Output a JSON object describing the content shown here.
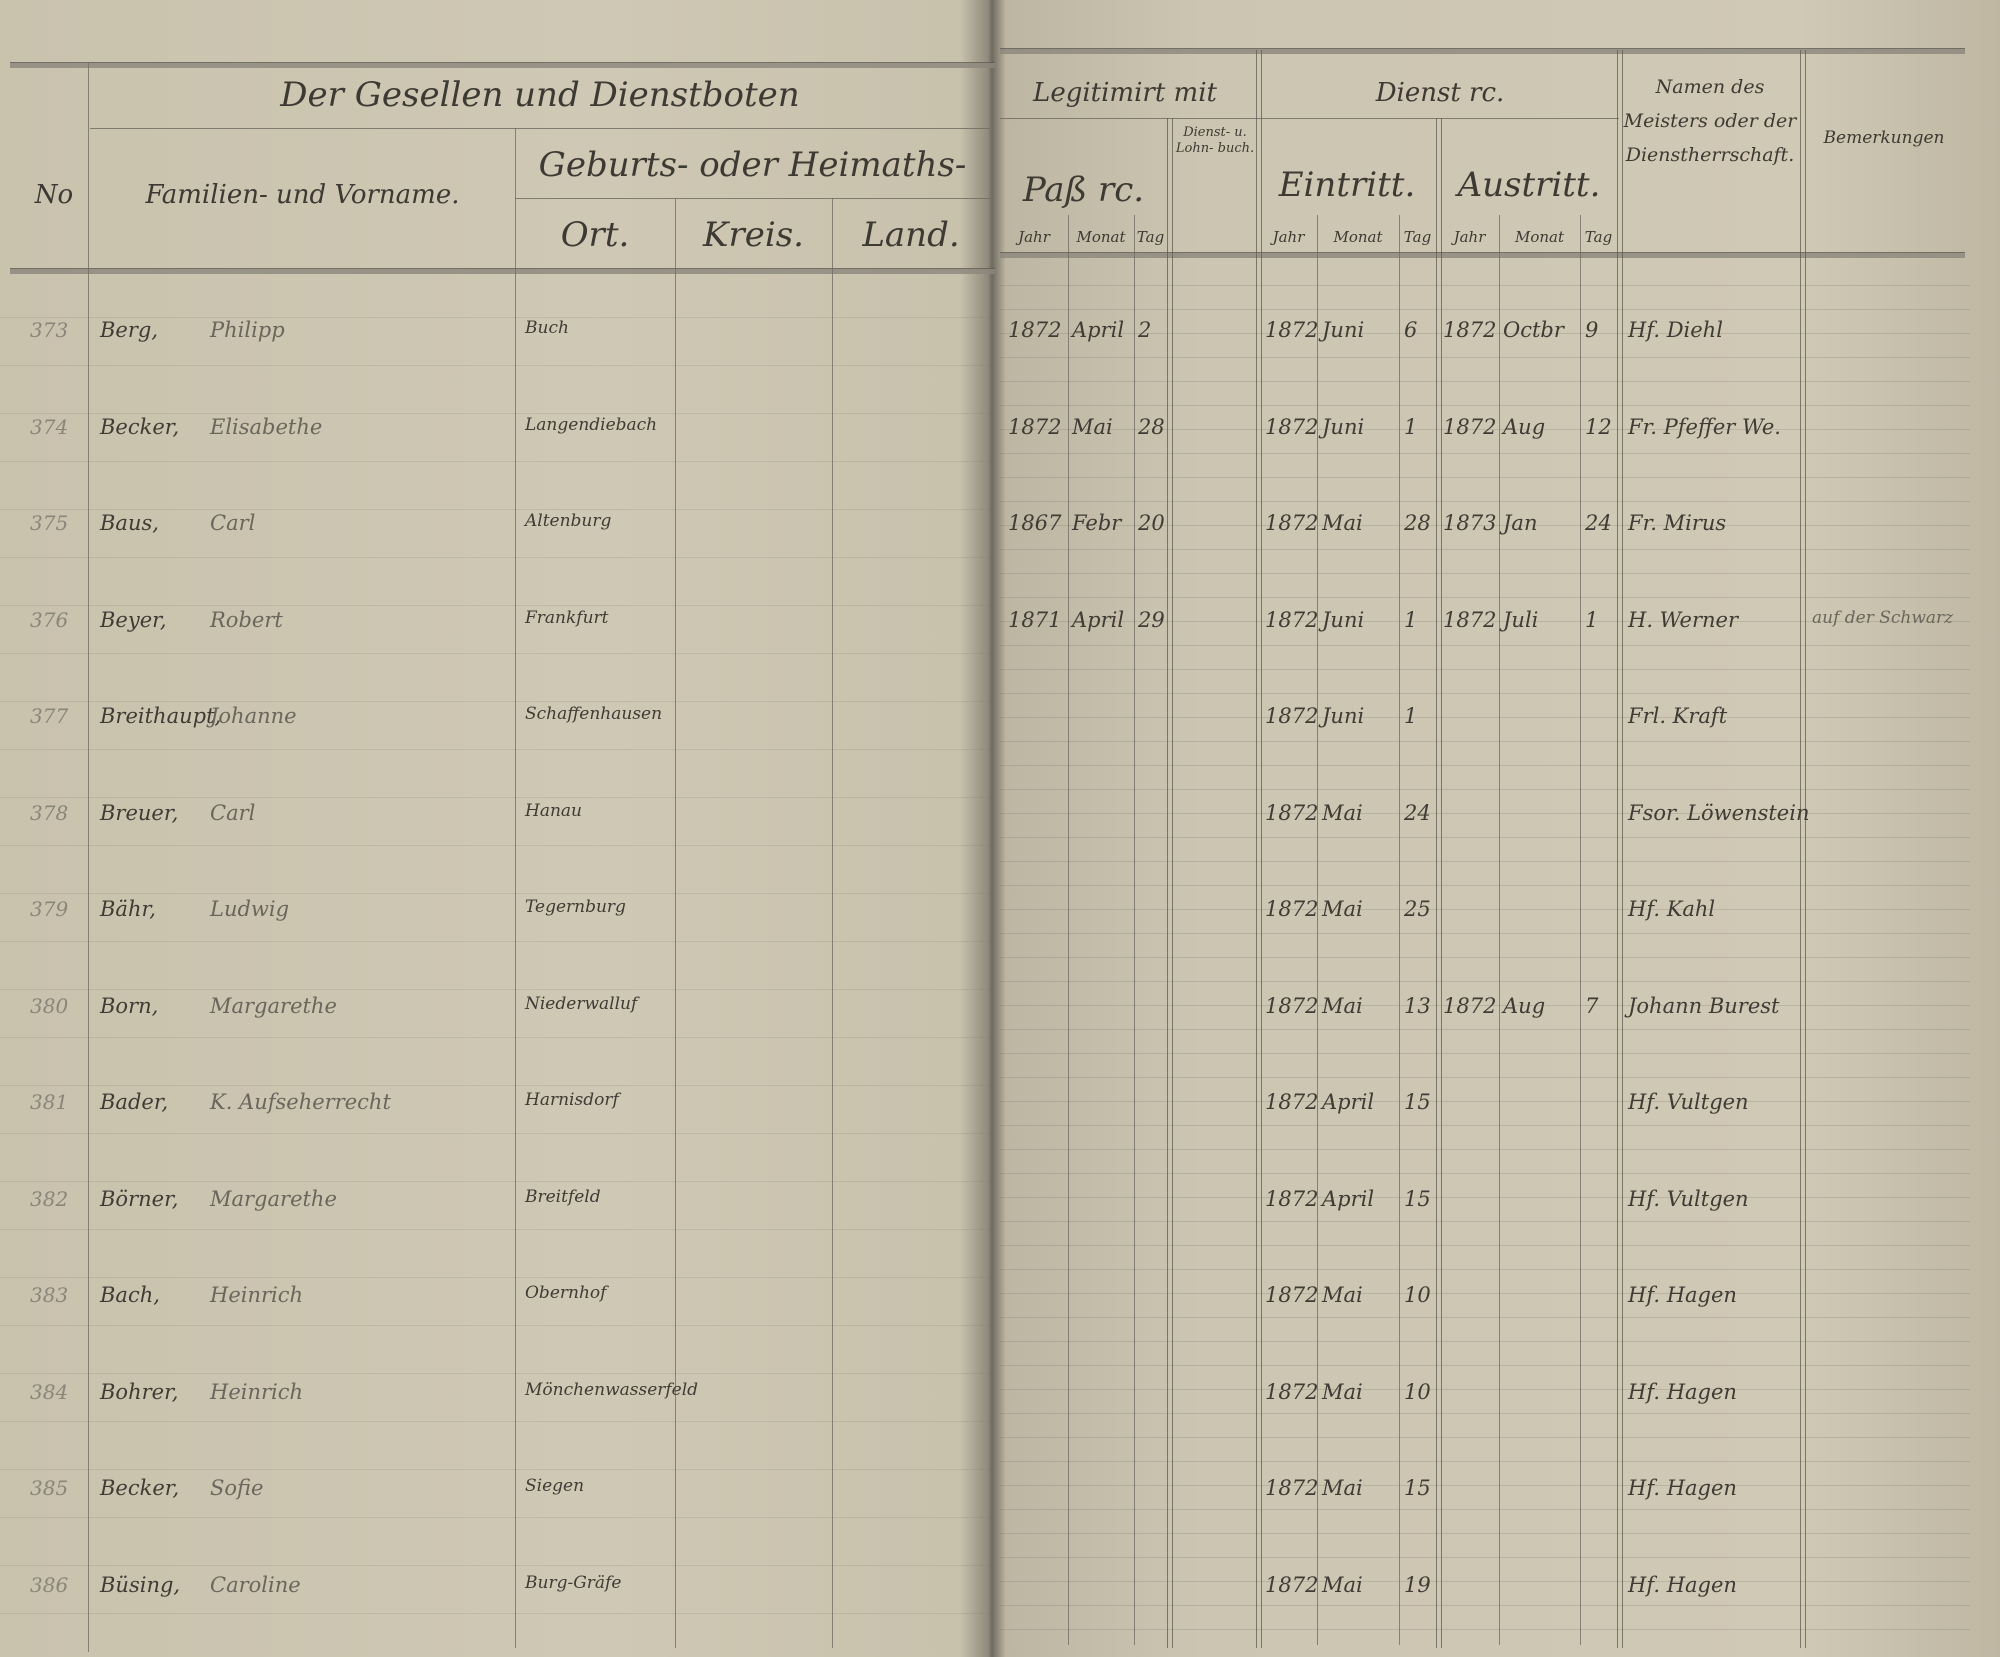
{
  "header": {
    "group_title": "Der Gesellen und Dienstboten",
    "col_number": "No",
    "col_name": "Familien- und Vorname.",
    "birthplace_group": "Geburts- oder Heimaths-",
    "col_ort": "Ort.",
    "col_kreis": "Kreis.",
    "col_land": "Land.",
    "legitimation_group": "Legitimirt mit",
    "col_pass": "Paß rc.",
    "col_dienstbuch": "Dienst- u. Lohn- buch.",
    "service_group": "Dienst rc.",
    "col_eintritt": "Eintritt.",
    "col_austritt": "Austritt.",
    "sub_jahr": "Jahr",
    "sub_monat": "Monat",
    "sub_tag": "Tag",
    "col_meister": "Namen des Meisters oder der Dienstherrschaft.",
    "col_bemerkungen": "Bemerkungen"
  },
  "rows": [
    {
      "nr": "373",
      "surname": "Berg,",
      "given": "Philipp",
      "ort": "Buch",
      "pass": [
        "1872",
        "April",
        "2"
      ],
      "ein": [
        "1872",
        "Juni",
        "6"
      ],
      "aus": [
        "1872",
        "Octbr",
        "9"
      ],
      "meister": "Hf. Diehl",
      "bem": ""
    },
    {
      "nr": "374",
      "surname": "Becker,",
      "given": "Elisabethe",
      "ort": "Langendiebach",
      "pass": [
        "1872",
        "Mai",
        "28"
      ],
      "ein": [
        "1872",
        "Juni",
        "1"
      ],
      "aus": [
        "1872",
        "Aug",
        "12"
      ],
      "meister": "Fr. Pfeffer We.",
      "bem": ""
    },
    {
      "nr": "375",
      "surname": "Baus,",
      "given": "Carl",
      "ort": "Altenburg",
      "pass": [
        "1867",
        "Febr",
        "20"
      ],
      "ein": [
        "1872",
        "Mai",
        "28"
      ],
      "aus": [
        "1873",
        "Jan",
        "24"
      ],
      "meister": "Fr. Mirus",
      "bem": ""
    },
    {
      "nr": "376",
      "surname": "Beyer,",
      "given": "Robert",
      "ort": "Frankfurt",
      "pass": [
        "1871",
        "April",
        "29"
      ],
      "ein": [
        "1872",
        "Juni",
        "1"
      ],
      "aus": [
        "1872",
        "Juli",
        "1"
      ],
      "meister": "H. Werner",
      "bem": "auf der Schwarz"
    },
    {
      "nr": "377",
      "surname": "Breithaupt,",
      "given": "Johanne",
      "ort": "Schaffenhausen",
      "pass": [
        "",
        "",
        ""
      ],
      "ein": [
        "1872",
        "Juni",
        "1"
      ],
      "aus": [
        "",
        "",
        ""
      ],
      "meister": "Frl. Kraft",
      "bem": ""
    },
    {
      "nr": "378",
      "surname": "Breuer,",
      "given": "Carl",
      "ort": "Hanau",
      "pass": [
        "",
        "",
        ""
      ],
      "ein": [
        "1872",
        "Mai",
        "24"
      ],
      "aus": [
        "",
        "",
        ""
      ],
      "meister": "Fsor. Löwenstein",
      "bem": ""
    },
    {
      "nr": "379",
      "surname": "Bähr,",
      "given": "Ludwig",
      "ort": "Tegernburg",
      "pass": [
        "",
        "",
        ""
      ],
      "ein": [
        "1872",
        "Mai",
        "25"
      ],
      "aus": [
        "",
        "",
        ""
      ],
      "meister": "Hf. Kahl",
      "bem": ""
    },
    {
      "nr": "380",
      "surname": "Born,",
      "given": "Margarethe",
      "ort": "Niederwalluf",
      "pass": [
        "",
        "",
        ""
      ],
      "ein": [
        "1872",
        "Mai",
        "13"
      ],
      "aus": [
        "1872",
        "Aug",
        "7"
      ],
      "meister": "Johann Burest",
      "bem": ""
    },
    {
      "nr": "381",
      "surname": "Bader,",
      "given": "K.  Aufseherrecht",
      "ort": "Harnisdorf",
      "pass": [
        "",
        "",
        ""
      ],
      "ein": [
        "1872",
        "April",
        "15"
      ],
      "aus": [
        "",
        "",
        ""
      ],
      "meister": "Hf. Vultgen",
      "bem": ""
    },
    {
      "nr": "382",
      "surname": "Börner,",
      "given": "Margarethe",
      "ort": "Breitfeld",
      "pass": [
        "",
        "",
        ""
      ],
      "ein": [
        "1872",
        "April",
        "15"
      ],
      "aus": [
        "",
        "",
        ""
      ],
      "meister": "Hf. Vultgen",
      "bem": ""
    },
    {
      "nr": "383",
      "surname": "Bach,",
      "given": "Heinrich",
      "ort": "Obernhof",
      "pass": [
        "",
        "",
        ""
      ],
      "ein": [
        "1872",
        "Mai",
        "10"
      ],
      "aus": [
        "",
        "",
        ""
      ],
      "meister": "Hf. Hagen",
      "bem": ""
    },
    {
      "nr": "384",
      "surname": "Bohrer,",
      "given": "Heinrich",
      "ort": "Mönchenwasserfeld",
      "pass": [
        "",
        "",
        ""
      ],
      "ein": [
        "1872",
        "Mai",
        "10"
      ],
      "aus": [
        "",
        "",
        ""
      ],
      "meister": "Hf. Hagen",
      "bem": ""
    },
    {
      "nr": "385",
      "surname": "Becker,",
      "given": "Sofie",
      "ort": "Siegen",
      "pass": [
        "",
        "",
        ""
      ],
      "ein": [
        "1872",
        "Mai",
        "15"
      ],
      "aus": [
        "",
        "",
        ""
      ],
      "meister": "Hf. Hagen",
      "bem": ""
    },
    {
      "nr": "386",
      "surname": "Büsing,",
      "given": "Caroline",
      "ort": "Burg-Gräfe",
      "pass": [
        "",
        "",
        ""
      ],
      "ein": [
        "1872",
        "Mai",
        "19"
      ],
      "aus": [
        "",
        "",
        ""
      ],
      "meister": "Hf. Hagen",
      "bem": ""
    }
  ]
}
